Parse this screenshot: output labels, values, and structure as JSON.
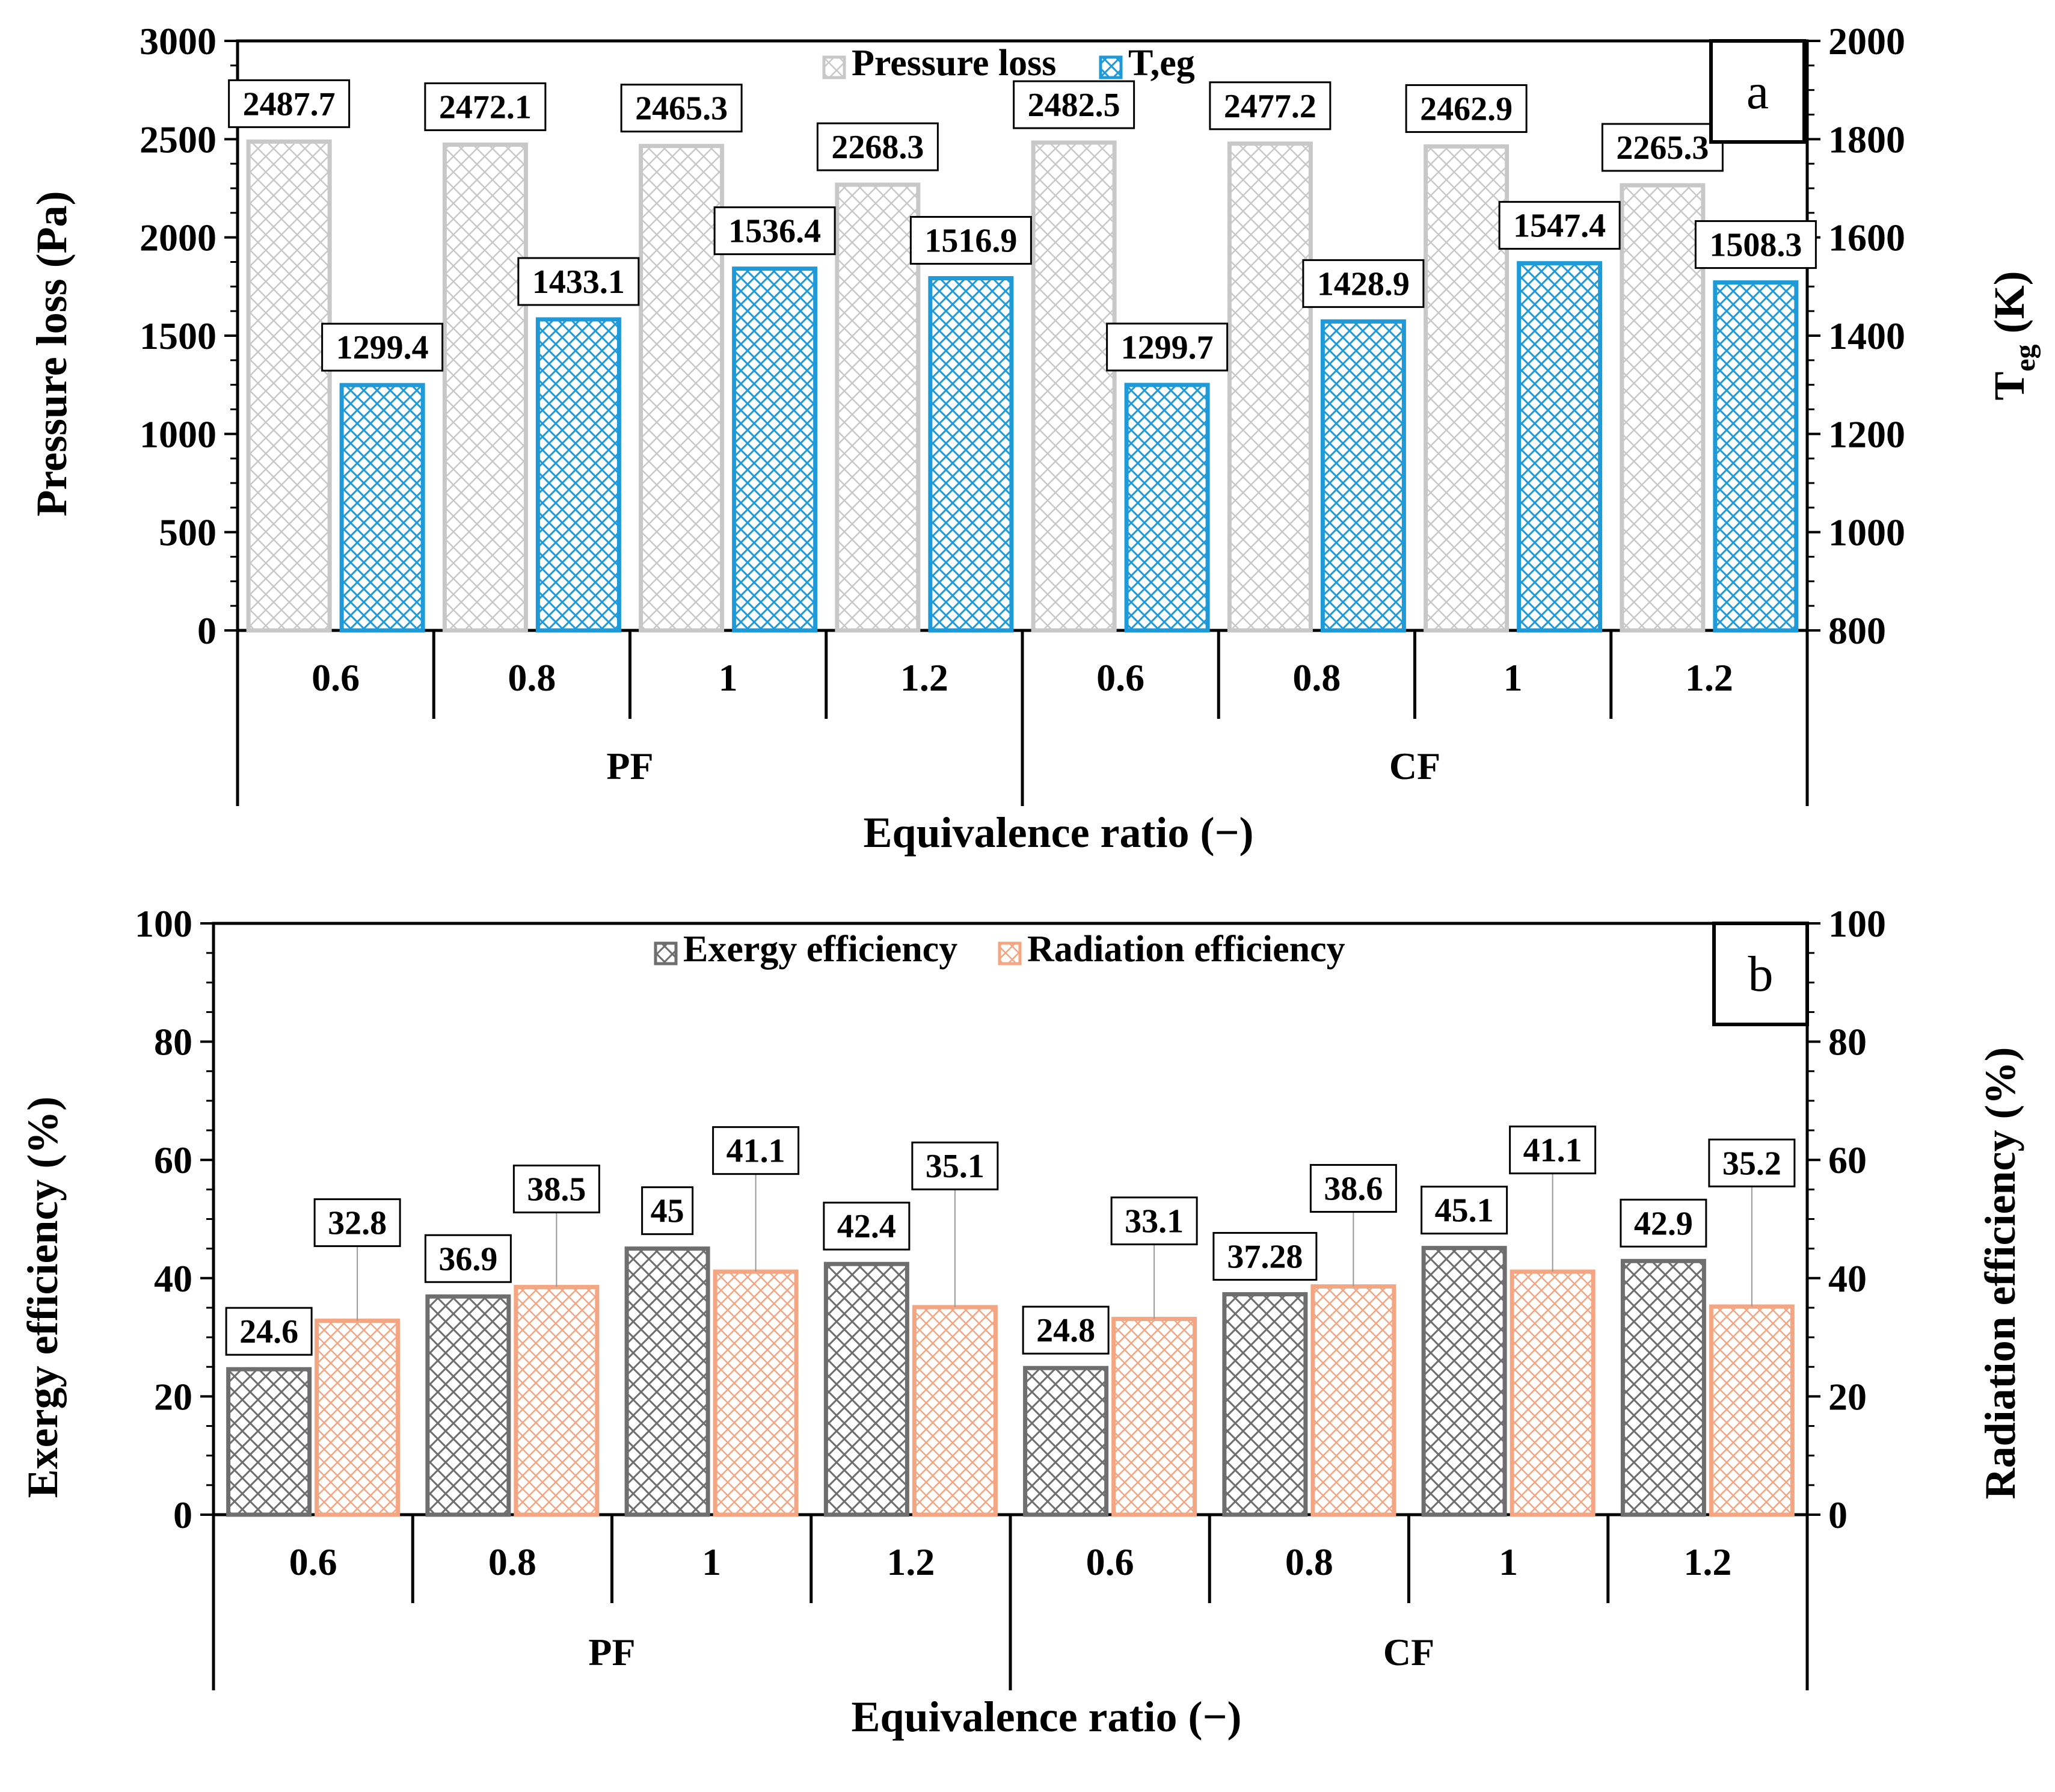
{
  "chart_data": [
    {
      "type": "bar",
      "panel": "a",
      "title": "",
      "categories": [
        "0.6",
        "0.8",
        "1",
        "1.2",
        "0.6",
        "0.8",
        "1",
        "1.2"
      ],
      "groups": [
        "PF",
        "CF"
      ],
      "xlabel": "Equivalence ratio (−)",
      "ylabel": "Pressure loss (Pa)",
      "y2label": "T",
      "y2label_sub": "eg",
      "y2label_unit": " (K)",
      "ylim": [
        0,
        3000
      ],
      "y2lim": [
        800,
        2000
      ],
      "yticks": [
        0,
        500,
        1000,
        1500,
        2000,
        2500,
        3000
      ],
      "y2ticks": [
        800,
        1000,
        1200,
        1400,
        1600,
        1800,
        2000
      ],
      "legend_position": "top-center",
      "series": [
        {
          "name": "Pressure loss",
          "axis": "left",
          "color": "#c8c8c8",
          "values": [
            2487.7,
            2472.1,
            2465.3,
            2268.3,
            2482.5,
            2477.2,
            2462.9,
            2265.3
          ],
          "labels": [
            "2487.7",
            "2472.1",
            "2465.3",
            "2268.3",
            "2482.5",
            "2477.2",
            "2462.9",
            "2265.3"
          ]
        },
        {
          "name": "T,eg",
          "axis": "right",
          "color": "#1f9ad8",
          "values": [
            1299.4,
            1433.1,
            1536.4,
            1516.9,
            1299.7,
            1428.9,
            1547.4,
            1508.3
          ],
          "labels": [
            "1299.4",
            "1433.1",
            "1536.4",
            "1516.9",
            "1299.7",
            "1428.9",
            "1547.4",
            "1508.3"
          ]
        }
      ]
    },
    {
      "type": "bar",
      "panel": "b",
      "title": "",
      "categories": [
        "0.6",
        "0.8",
        "1",
        "1.2",
        "0.6",
        "0.8",
        "1",
        "1.2"
      ],
      "groups": [
        "PF",
        "CF"
      ],
      "xlabel": "Equivalence ratio (−)",
      "ylabel": "Exergy efficiency (%)",
      "y2label": "Radiation efficiency (%)",
      "ylim": [
        0,
        100
      ],
      "y2lim": [
        0,
        100
      ],
      "yticks": [
        0,
        20,
        40,
        60,
        80,
        100
      ],
      "y2ticks": [
        0,
        20,
        40,
        60,
        80,
        100
      ],
      "legend_position": "top-center",
      "series": [
        {
          "name": "Exergy efficiency",
          "axis": "left",
          "color": "#6e6e6e",
          "values": [
            24.6,
            36.9,
            45,
            42.4,
            24.8,
            37.28,
            45.1,
            42.9
          ],
          "labels": [
            "24.6",
            "36.9",
            "45",
            "42.4",
            "24.8",
            "37.28",
            "45.1",
            "42.9"
          ]
        },
        {
          "name": "Radiation efficiency",
          "axis": "right",
          "color": "#f4a582",
          "values": [
            32.8,
            38.5,
            41.1,
            35.1,
            33.1,
            38.6,
            41.1,
            35.2
          ],
          "labels": [
            "32.8",
            "38.5",
            "41.1",
            "35.1",
            "33.1",
            "38.6",
            "41.1",
            "35.2"
          ]
        }
      ]
    }
  ]
}
